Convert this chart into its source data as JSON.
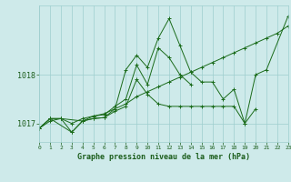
{
  "xlabel": "Graphe pression niveau de la mer (hPa)",
  "x_hours": [
    0,
    1,
    2,
    3,
    4,
    5,
    6,
    7,
    8,
    9,
    10,
    11,
    12,
    13,
    14,
    15,
    16,
    17,
    18,
    19,
    20,
    21,
    22,
    23
  ],
  "series": [
    [
      1016.9,
      1017.1,
      1017.1,
      1016.82,
      1017.05,
      1017.1,
      1017.12,
      1017.25,
      1017.35,
      1017.9,
      1017.6,
      1017.4,
      1017.35,
      1017.35,
      1017.35,
      1017.35,
      1017.35,
      1017.35,
      1017.35,
      1017.0,
      1017.3,
      null,
      null,
      null
    ],
    [
      1016.9,
      1017.1,
      1017.1,
      null,
      1017.05,
      1017.1,
      1017.12,
      1017.3,
      1018.1,
      1018.4,
      1018.15,
      1018.75,
      1019.15,
      1018.6,
      1018.05,
      1017.85,
      1017.85,
      1017.5,
      1017.7,
      1017.0,
      1018.0,
      1018.1,
      null,
      1019.2
    ],
    [
      1016.9,
      1017.1,
      null,
      1016.82,
      1017.05,
      1017.15,
      1017.18,
      1017.35,
      1017.5,
      1018.2,
      1017.8,
      1018.55,
      1018.35,
      1018.0,
      1017.8,
      null,
      null,
      null,
      null,
      null,
      null,
      null,
      null,
      null
    ],
    [
      1016.9,
      1017.05,
      1017.1,
      1017.0,
      1017.1,
      1017.15,
      1017.2,
      1017.3,
      1017.4,
      1017.55,
      1017.65,
      1017.75,
      1017.85,
      1017.95,
      1018.05,
      1018.15,
      1018.25,
      1018.35,
      1018.45,
      1018.55,
      1018.65,
      1018.75,
      1018.85,
      1019.0
    ]
  ],
  "line_color": "#1a6b1a",
  "marker": "+",
  "bg_color": "#ceeaea",
  "grid_color": "#9ecece",
  "tick_label_color": "#1a5c1a",
  "xlabel_color": "#1a5c1a",
  "ylim": [
    1016.62,
    1019.42
  ],
  "yticks": [
    1017,
    1018
  ],
  "xlim": [
    0,
    23
  ]
}
